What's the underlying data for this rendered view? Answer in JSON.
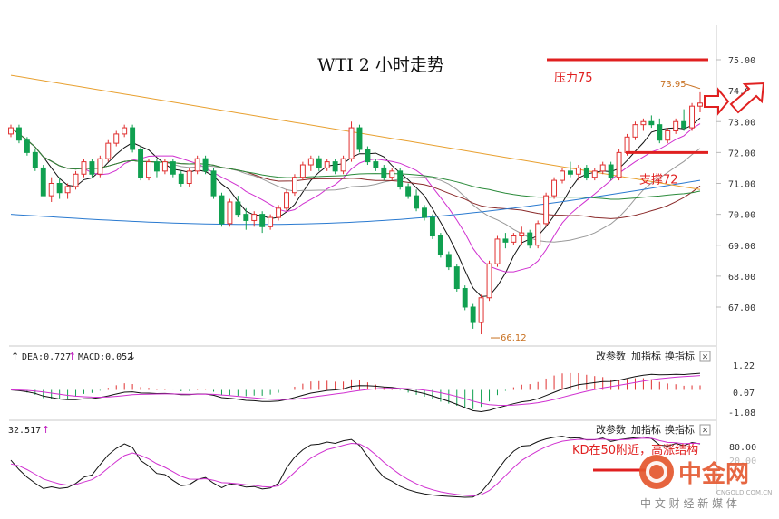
{
  "chart_data": {
    "type": "candlestick",
    "title": "WTI 2 小时走势",
    "price_ylim": [
      66.4,
      75.4
    ],
    "price_ticks": [
      "75.00",
      "74.00",
      "73.00",
      "72.00",
      "71.00",
      "70.00",
      "69.00",
      "68.00",
      "67.00"
    ],
    "annotations": {
      "resistance_label": "压力75",
      "resistance_level": 75.0,
      "support_label": "支撑72",
      "support_level": 72.0,
      "high_label": "73.95",
      "high_value": 73.95,
      "low_label": "66.12",
      "low_value": 66.12,
      "kd_note": "KD在50附近，高涨结构"
    },
    "candles": [
      [
        72.6,
        72.9,
        72.5,
        72.8
      ],
      [
        72.8,
        72.9,
        72.3,
        72.4
      ],
      [
        72.4,
        72.5,
        71.9,
        72.0
      ],
      [
        72.0,
        72.1,
        71.4,
        71.5
      ],
      [
        71.5,
        71.6,
        70.6,
        70.6
      ],
      [
        70.6,
        71.2,
        70.4,
        71.0
      ],
      [
        71.0,
        71.2,
        70.5,
        70.7
      ],
      [
        70.7,
        71.0,
        70.5,
        70.9
      ],
      [
        70.9,
        71.4,
        70.8,
        71.3
      ],
      [
        71.3,
        71.8,
        71.2,
        71.7
      ],
      [
        71.7,
        71.8,
        71.2,
        71.3
      ],
      [
        71.3,
        71.9,
        71.2,
        71.8
      ],
      [
        71.8,
        72.4,
        71.7,
        72.3
      ],
      [
        72.3,
        72.7,
        72.2,
        72.6
      ],
      [
        72.6,
        72.9,
        72.5,
        72.8
      ],
      [
        72.8,
        72.9,
        72.0,
        72.1
      ],
      [
        72.1,
        72.2,
        71.1,
        71.2
      ],
      [
        71.2,
        71.8,
        71.1,
        71.7
      ],
      [
        71.7,
        71.8,
        71.2,
        71.4
      ],
      [
        71.4,
        71.8,
        71.3,
        71.7
      ],
      [
        71.7,
        71.8,
        71.2,
        71.3
      ],
      [
        71.3,
        71.4,
        70.9,
        71.0
      ],
      [
        71.0,
        71.5,
        70.9,
        71.4
      ],
      [
        71.4,
        71.9,
        71.3,
        71.8
      ],
      [
        71.8,
        71.9,
        71.3,
        71.4
      ],
      [
        71.4,
        71.5,
        70.5,
        70.6
      ],
      [
        70.6,
        70.7,
        69.6,
        69.7
      ],
      [
        69.7,
        70.5,
        69.6,
        70.4
      ],
      [
        70.4,
        70.6,
        69.9,
        70.0
      ],
      [
        70.0,
        70.2,
        69.5,
        69.8
      ],
      [
        69.8,
        70.1,
        69.6,
        70.0
      ],
      [
        70.0,
        70.1,
        69.4,
        69.6
      ],
      [
        69.6,
        70.0,
        69.5,
        69.9
      ],
      [
        69.9,
        70.3,
        69.8,
        70.2
      ],
      [
        70.2,
        70.8,
        70.1,
        70.7
      ],
      [
        70.7,
        71.3,
        70.6,
        71.2
      ],
      [
        71.2,
        71.7,
        71.1,
        71.6
      ],
      [
        71.6,
        71.9,
        71.4,
        71.8
      ],
      [
        71.8,
        71.9,
        71.4,
        71.5
      ],
      [
        71.5,
        71.8,
        71.4,
        71.7
      ],
      [
        71.7,
        71.8,
        71.3,
        71.4
      ],
      [
        71.4,
        71.9,
        71.3,
        71.8
      ],
      [
        71.8,
        73.0,
        71.7,
        72.8
      ],
      [
        72.8,
        72.9,
        72.0,
        72.1
      ],
      [
        72.1,
        72.2,
        71.6,
        71.7
      ],
      [
        71.7,
        71.8,
        71.4,
        71.5
      ],
      [
        71.5,
        71.6,
        71.1,
        71.2
      ],
      [
        71.2,
        71.5,
        71.1,
        71.4
      ],
      [
        71.4,
        71.5,
        70.8,
        70.9
      ],
      [
        70.9,
        71.0,
        70.5,
        70.6
      ],
      [
        70.6,
        70.8,
        70.1,
        70.2
      ],
      [
        70.2,
        70.3,
        69.8,
        69.9
      ],
      [
        69.9,
        70.0,
        69.2,
        69.3
      ],
      [
        69.3,
        69.4,
        68.6,
        68.7
      ],
      [
        68.7,
        68.8,
        68.2,
        68.3
      ],
      [
        68.3,
        68.4,
        67.5,
        67.6
      ],
      [
        67.6,
        67.7,
        66.9,
        67.0
      ],
      [
        67.0,
        67.1,
        66.3,
        66.5
      ],
      [
        66.5,
        67.4,
        66.12,
        67.3
      ],
      [
        67.3,
        68.5,
        67.2,
        68.4
      ],
      [
        68.4,
        69.3,
        68.3,
        69.2
      ],
      [
        69.2,
        69.4,
        68.9,
        69.1
      ],
      [
        69.1,
        69.4,
        69.0,
        69.3
      ],
      [
        69.3,
        69.6,
        69.0,
        69.4
      ],
      [
        69.4,
        69.5,
        68.9,
        69.0
      ],
      [
        69.0,
        69.8,
        68.9,
        69.7
      ],
      [
        69.7,
        70.7,
        69.6,
        70.6
      ],
      [
        70.6,
        71.2,
        70.5,
        71.1
      ],
      [
        71.1,
        71.5,
        71.0,
        71.4
      ],
      [
        71.4,
        71.7,
        71.2,
        71.3
      ],
      [
        71.3,
        71.6,
        71.1,
        71.5
      ],
      [
        71.5,
        71.6,
        71.1,
        71.2
      ],
      [
        71.2,
        71.5,
        71.1,
        71.4
      ],
      [
        71.4,
        71.7,
        71.3,
        71.6
      ],
      [
        71.6,
        71.7,
        71.1,
        71.2
      ],
      [
        71.2,
        72.1,
        71.1,
        72.0
      ],
      [
        72.0,
        72.6,
        71.9,
        72.5
      ],
      [
        72.5,
        73.0,
        72.4,
        72.9
      ],
      [
        72.9,
        73.1,
        72.7,
        73.0
      ],
      [
        73.0,
        73.2,
        72.8,
        72.9
      ],
      [
        72.9,
        73.1,
        72.3,
        72.4
      ],
      [
        72.4,
        72.8,
        72.3,
        72.7
      ],
      [
        72.7,
        73.1,
        72.6,
        73.0
      ],
      [
        73.0,
        73.4,
        72.7,
        72.8
      ],
      [
        72.8,
        73.6,
        72.7,
        73.5
      ],
      [
        73.5,
        73.95,
        73.3,
        73.6
      ]
    ],
    "macd": {
      "header_items": [
        "DEA:0.727",
        "MACD:0.052"
      ],
      "first_item_arrow": "↑",
      "second_item_arrow": "↑",
      "trailing_arrow": "↓",
      "ticks": [
        "1.22",
        "0.07",
        "-1.08"
      ],
      "ylim": [
        -1.2,
        1.3
      ]
    },
    "kd": {
      "header_value": "32.517",
      "header_arrow": "↑",
      "ticks": [
        "80.00",
        "20.00"
      ],
      "ylim": [
        0,
        100
      ]
    },
    "buttons": [
      "改参数",
      "加指标",
      "换指标"
    ],
    "close_glyph": "✕"
  },
  "watermark": {
    "logo_text": "中金网",
    "site": "CNGOLD.COM.CN",
    "tagline": "中 文 财 经 新 媒 体"
  }
}
